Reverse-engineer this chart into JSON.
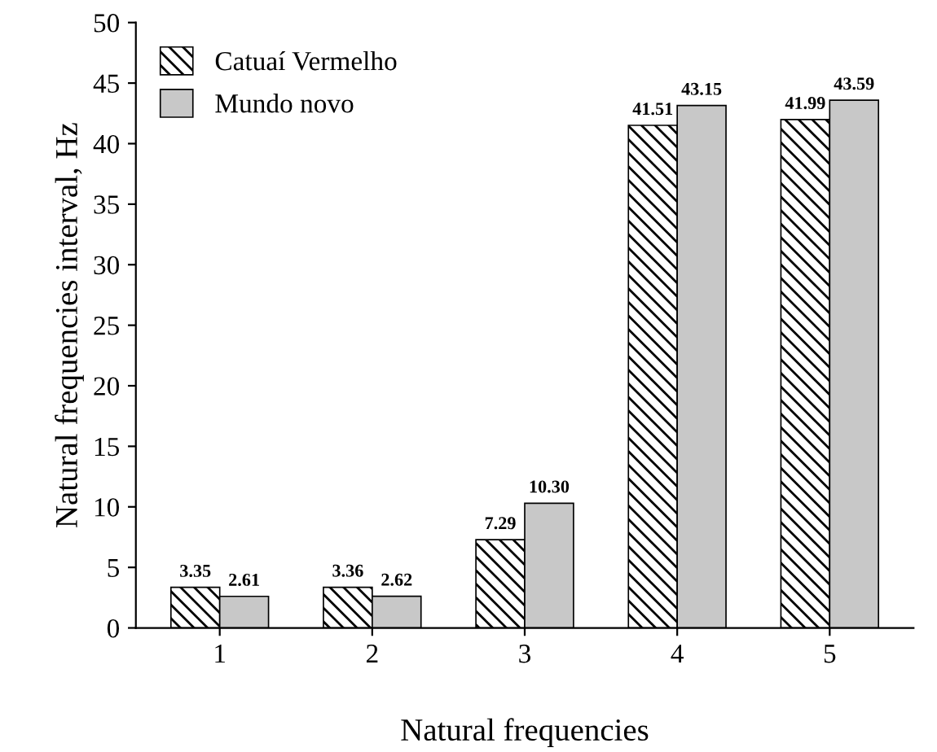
{
  "chart_data": {
    "type": "bar",
    "xlabel": "Natural frequencies",
    "ylabel": "Natural frequencies interval, Hz",
    "categories": [
      "1",
      "2",
      "3",
      "4",
      "5"
    ],
    "series": [
      {
        "name": "Catuaí Vermelho",
        "color": "#000000",
        "values": [
          3.35,
          3.36,
          7.29,
          41.51,
          41.99
        ],
        "value_labels": [
          "3.35",
          "3.36",
          "7.29",
          "41.51",
          "41.99"
        ]
      },
      {
        "name": "Mundo novo",
        "color": "#c8c8c8",
        "values": [
          2.61,
          2.62,
          10.3,
          43.15,
          43.59
        ],
        "value_labels": [
          "2.61",
          "2.62",
          "10.30",
          "43.15",
          "43.59"
        ]
      }
    ],
    "ylim": [
      0,
      50
    ],
    "yticks": [
      0,
      5,
      10,
      15,
      20,
      25,
      30,
      35,
      40,
      45,
      50
    ],
    "grid": false,
    "legend": "top left"
  }
}
